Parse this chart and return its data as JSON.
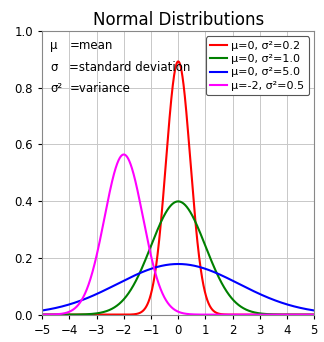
{
  "title": "Normal Distributions",
  "xlim": [
    -5,
    5
  ],
  "ylim": [
    0,
    1
  ],
  "xticks": [
    -5,
    -4,
    -3,
    -2,
    -1,
    0,
    1,
    2,
    3,
    4,
    5
  ],
  "yticks": [
    0,
    0.2,
    0.4,
    0.6,
    0.8,
    1
  ],
  "distributions": [
    {
      "mu": 0,
      "var": 0.2,
      "color": "#ff0000",
      "label": "μ=0, σ²=0.2"
    },
    {
      "mu": 0,
      "var": 1.0,
      "color": "#008000",
      "label": "μ=0, σ²=1.0"
    },
    {
      "mu": 0,
      "var": 5.0,
      "color": "#0000ff",
      "label": "μ=0, σ²=5.0"
    },
    {
      "mu": -2,
      "var": 0.5,
      "color": "#ff00ff",
      "label": "μ=-2, σ²=0.5"
    }
  ],
  "annotation_lines": [
    [
      "μ",
      "=mean"
    ],
    [
      "σ",
      "=standard deviation"
    ],
    [
      "σ²",
      "=variance"
    ]
  ],
  "background_color": "#ffffff",
  "grid_color": "#c8c8c8",
  "title_fontsize": 12,
  "tick_fontsize": 8.5,
  "legend_fontsize": 8,
  "annotation_fontsize": 8.5,
  "linewidth": 1.5
}
